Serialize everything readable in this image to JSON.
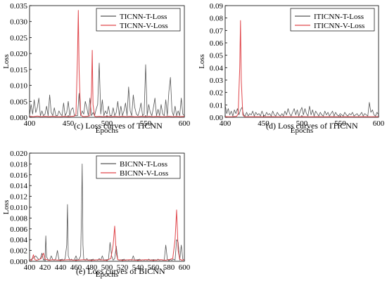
{
  "chart_data": [
    {
      "type": "line",
      "xlabel": "Epochs",
      "ylabel": "Loss",
      "xlim": [
        400,
        600
      ],
      "ylim": [
        0,
        0.035
      ],
      "xticks": [
        400,
        450,
        500,
        550,
        600
      ],
      "yticks": [
        0.0,
        0.005,
        0.01,
        0.015,
        0.02,
        0.025,
        0.03,
        0.035
      ],
      "ytick_labels": [
        "0.000",
        "0.005",
        "0.010",
        "0.015",
        "0.020",
        "0.025",
        "0.030",
        "0.035"
      ],
      "caption": "(c) Loss curves of TICNN",
      "legend_position": "top-right",
      "grid": false,
      "series": [
        {
          "name": "TICNN-T-Loss",
          "color": "#555555",
          "x": [
            400,
            402,
            404,
            406,
            408,
            410,
            412,
            414,
            416,
            418,
            420,
            422,
            424,
            426,
            428,
            430,
            432,
            434,
            436,
            438,
            440,
            442,
            444,
            446,
            448,
            450,
            452,
            454,
            456,
            458,
            460,
            462,
            464,
            466,
            468,
            470,
            472,
            474,
            476,
            478,
            480,
            482,
            484,
            486,
            488,
            490,
            492,
            494,
            496,
            498,
            500,
            502,
            504,
            506,
            508,
            510,
            512,
            514,
            516,
            518,
            520,
            522,
            524,
            526,
            528,
            530,
            532,
            534,
            536,
            538,
            540,
            542,
            544,
            546,
            548,
            550,
            552,
            554,
            556,
            558,
            560,
            562,
            564,
            566,
            568,
            570,
            572,
            574,
            576,
            578,
            580,
            582,
            584,
            586,
            588,
            590,
            592,
            594,
            596,
            598,
            600
          ],
          "y": [
            0.0005,
            0.004,
            0.001,
            0.0055,
            0.0015,
            0.003,
            0.006,
            0.0005,
            0.002,
            0.0005,
            0.001,
            0.0035,
            0.0005,
            0.007,
            0.0015,
            0.0005,
            0.003,
            0.0005,
            0.0005,
            0.002,
            0.001,
            0.0005,
            0.0045,
            0.0005,
            0.0015,
            0.005,
            0.0005,
            0.0025,
            0.003,
            0.0005,
            0.0005,
            0.0005,
            0.0075,
            0.0005,
            0.002,
            0.001,
            0.005,
            0.003,
            0.0005,
            0.006,
            0.0005,
            0.0015,
            0.0005,
            0.0025,
            0.004,
            0.017,
            0.001,
            0.0055,
            0.0005,
            0.002,
            0.001,
            0.0035,
            0.0005,
            0.0005,
            0.003,
            0.0005,
            0.0015,
            0.005,
            0.0005,
            0.0035,
            0.0005,
            0.002,
            0.0045,
            0.0005,
            0.0095,
            0.002,
            0.0005,
            0.007,
            0.003,
            0.001,
            0.0005,
            0.002,
            0.0045,
            0.0005,
            0.001,
            0.0165,
            0.0005,
            0.004,
            0.0015,
            0.0005,
            0.003,
            0.006,
            0.0005,
            0.0025,
            0.0005,
            0.004,
            0.001,
            0.0005,
            0.0055,
            0.0005,
            0.008,
            0.0125,
            0.002,
            0.0005,
            0.0035,
            0.0005,
            0.002,
            0.0005,
            0.006,
            0.001,
            0.0005
          ]
        },
        {
          "name": "TICNN-V-Loss",
          "color": "#e0474c",
          "x": [
            400,
            405,
            410,
            415,
            420,
            425,
            430,
            435,
            440,
            445,
            450,
            455,
            458,
            460,
            462,
            463,
            464,
            466,
            468,
            470,
            475,
            478,
            480,
            481,
            482,
            484,
            486,
            490,
            495,
            500,
            505,
            510,
            515,
            520,
            525,
            530,
            535,
            540,
            545,
            550,
            555,
            560,
            565,
            570,
            575,
            580,
            585,
            590,
            595,
            600
          ],
          "y": [
            0.0003,
            0.0002,
            0.0004,
            0.0002,
            0.0003,
            0.0002,
            0.0003,
            0.0002,
            0.0002,
            0.0003,
            0.0002,
            0.0003,
            0.0004,
            0.001,
            0.02,
            0.0335,
            0.015,
            0.001,
            0.0003,
            0.0002,
            0.0003,
            0.0005,
            0.008,
            0.021,
            0.004,
            0.0004,
            0.0002,
            0.0003,
            0.0002,
            0.0003,
            0.0002,
            0.0003,
            0.0002,
            0.0003,
            0.0002,
            0.0003,
            0.0002,
            0.0002,
            0.0003,
            0.0002,
            0.0003,
            0.0002,
            0.0003,
            0.0002,
            0.0002,
            0.0003,
            0.0002,
            0.0003,
            0.0002,
            0.0003
          ]
        }
      ]
    },
    {
      "type": "line",
      "xlabel": "Epochs",
      "ylabel": "Loss",
      "xlim": [
        400,
        600
      ],
      "ylim": [
        0,
        0.09
      ],
      "xticks": [
        400,
        450,
        500,
        550,
        600
      ],
      "yticks": [
        0.0,
        0.01,
        0.02,
        0.03,
        0.04,
        0.05,
        0.06,
        0.07,
        0.08,
        0.09
      ],
      "ytick_labels": [
        "0.00",
        "0.01",
        "0.02",
        "0.03",
        "0.04",
        "0.05",
        "0.06",
        "0.07",
        "0.08",
        "0.09"
      ],
      "caption": "(d) Loss curves of ITICNN",
      "legend_position": "top-right",
      "grid": false,
      "series": [
        {
          "name": "ITICNN-T-Loss",
          "color": "#555555",
          "x": [
            400,
            402,
            404,
            406,
            408,
            410,
            412,
            414,
            416,
            418,
            420,
            422,
            424,
            426,
            428,
            430,
            432,
            434,
            436,
            438,
            440,
            442,
            444,
            446,
            448,
            450,
            452,
            454,
            456,
            458,
            460,
            462,
            464,
            466,
            468,
            470,
            472,
            474,
            476,
            478,
            480,
            482,
            484,
            486,
            488,
            490,
            492,
            494,
            496,
            498,
            500,
            502,
            504,
            506,
            508,
            510,
            512,
            514,
            516,
            518,
            520,
            522,
            524,
            526,
            528,
            530,
            532,
            534,
            536,
            538,
            540,
            542,
            544,
            546,
            548,
            550,
            552,
            554,
            556,
            558,
            560,
            562,
            564,
            566,
            568,
            570,
            572,
            574,
            576,
            578,
            580,
            582,
            584,
            586,
            588,
            590,
            592,
            594,
            596,
            598,
            600
          ],
          "y": [
            0.01,
            0.003,
            0.007,
            0.002,
            0.005,
            0.001,
            0.006,
            0.003,
            0.007,
            0.002,
            0.006,
            0.008,
            0.002,
            0.001,
            0.004,
            0.001,
            0.003,
            0.002,
            0.005,
            0.001,
            0.004,
            0.002,
            0.003,
            0.001,
            0.005,
            0.002,
            0.001,
            0.004,
            0.002,
            0.003,
            0.001,
            0.005,
            0.002,
            0.001,
            0.004,
            0.002,
            0.001,
            0.003,
            0.001,
            0.005,
            0.002,
            0.007,
            0.003,
            0.001,
            0.004,
            0.007,
            0.002,
            0.006,
            0.001,
            0.005,
            0.008,
            0.002,
            0.007,
            0.003,
            0.001,
            0.009,
            0.002,
            0.006,
            0.001,
            0.005,
            0.003,
            0.001,
            0.004,
            0.002,
            0.001,
            0.005,
            0.002,
            0.004,
            0.001,
            0.003,
            0.005,
            0.001,
            0.004,
            0.002,
            0.001,
            0.003,
            0.002,
            0.001,
            0.004,
            0.002,
            0.001,
            0.003,
            0.002,
            0.004,
            0.001,
            0.002,
            0.003,
            0.001,
            0.002,
            0.004,
            0.001,
            0.003,
            0.002,
            0.001,
            0.012,
            0.004,
            0.006,
            0.002,
            0.001,
            0.004,
            0.002
          ]
        },
        {
          "name": "ITICNN-V-Loss",
          "color": "#e0474c",
          "x": [
            400,
            405,
            410,
            415,
            417,
            419,
            420,
            421,
            423,
            425,
            430,
            440,
            450,
            460,
            470,
            480,
            490,
            500,
            510,
            520,
            530,
            540,
            550,
            560,
            570,
            580,
            590,
            600
          ],
          "y": [
            0.0005,
            0.0004,
            0.0005,
            0.0008,
            0.003,
            0.04,
            0.078,
            0.03,
            0.002,
            0.0005,
            0.0004,
            0.0005,
            0.0004,
            0.0005,
            0.0004,
            0.0005,
            0.0004,
            0.0005,
            0.0004,
            0.0005,
            0.0004,
            0.0005,
            0.0004,
            0.0005,
            0.0004,
            0.0005,
            0.0004,
            0.0005
          ]
        }
      ]
    },
    {
      "type": "line",
      "xlabel": "Epochs",
      "ylabel": "Loss",
      "xlim": [
        400,
        600
      ],
      "ylim": [
        0,
        0.02
      ],
      "xticks": [
        400,
        420,
        440,
        460,
        480,
        500,
        520,
        540,
        560,
        580,
        600
      ],
      "yticks": [
        0.0,
        0.002,
        0.004,
        0.006,
        0.008,
        0.01,
        0.012,
        0.014,
        0.016,
        0.018,
        0.02
      ],
      "ytick_labels": [
        "0.000",
        "0.002",
        "0.004",
        "0.006",
        "0.008",
        "0.010",
        "0.012",
        "0.014",
        "0.016",
        "0.018",
        "0.020"
      ],
      "caption": "(e) Loss curves of BICNN",
      "legend_position": "top-right",
      "grid": false,
      "series": [
        {
          "name": "BICNN-T-Loss",
          "color": "#555555",
          "x": [
            400,
            404,
            408,
            412,
            414,
            416,
            418,
            420,
            421,
            422,
            424,
            426,
            428,
            430,
            432,
            434,
            436,
            438,
            440,
            442,
            444,
            446,
            448,
            449,
            450,
            452,
            454,
            456,
            458,
            460,
            462,
            464,
            466,
            467,
            468,
            469,
            470,
            472,
            474,
            476,
            478,
            480,
            482,
            484,
            486,
            488,
            490,
            492,
            494,
            496,
            498,
            500,
            502,
            504,
            506,
            508,
            510,
            512,
            514,
            516,
            518,
            520,
            522,
            524,
            526,
            528,
            530,
            532,
            534,
            536,
            538,
            540,
            542,
            544,
            546,
            548,
            550,
            552,
            554,
            556,
            558,
            560,
            562,
            564,
            566,
            568,
            570,
            572,
            574,
            576,
            578,
            580,
            582,
            584,
            586,
            588,
            590,
            592,
            594,
            596,
            598,
            600
          ],
          "y": [
            0.0002,
            0.0005,
            0.001,
            0.0003,
            0.0005,
            0.0015,
            0.0002,
            0.0005,
            0.0047,
            0.0008,
            0.0003,
            0.0002,
            0.001,
            0.0003,
            0.0002,
            0.0005,
            0.002,
            0.0003,
            0.0002,
            0.0004,
            0.0002,
            0.0005,
            0.003,
            0.0105,
            0.001,
            0.0002,
            0.0004,
            0.0002,
            0.0003,
            0.001,
            0.0002,
            0.0004,
            0.001,
            0.008,
            0.018,
            0.003,
            0.0004,
            0.0002,
            0.0005,
            0.0002,
            0.0003,
            0.0002,
            0.0004,
            0.0002,
            0.0003,
            0.0002,
            0.0005,
            0.0002,
            0.001,
            0.0002,
            0.0003,
            0.0002,
            0.0004,
            0.0035,
            0.001,
            0.0002,
            0.0005,
            0.0028,
            0.0003,
            0.0002,
            0.0003,
            0.0002,
            0.0004,
            0.0002,
            0.0003,
            0.0002,
            0.0003,
            0.0002,
            0.001,
            0.0002,
            0.0003,
            0.0002,
            0.0004,
            0.0002,
            0.0003,
            0.0002,
            0.0003,
            0.0002,
            0.0004,
            0.0002,
            0.0003,
            0.0002,
            0.0003,
            0.0002,
            0.0004,
            0.0002,
            0.0003,
            0.0002,
            0.0002,
            0.003,
            0.0004,
            0.0002,
            0.0003,
            0.0002,
            0.0004,
            0.0002,
            0.004,
            0.0035,
            0.0002,
            0.003,
            0.0004,
            0.0002
          ]
        },
        {
          "name": "BICNN-V-Loss",
          "color": "#e0474c",
          "x": [
            400,
            403,
            405,
            407,
            409,
            412,
            415,
            418,
            420,
            425,
            430,
            440,
            450,
            460,
            470,
            480,
            490,
            500,
            505,
            508,
            510,
            512,
            514,
            520,
            530,
            540,
            550,
            560,
            570,
            575,
            580,
            585,
            588,
            590,
            592,
            594,
            597,
            600
          ],
          "y": [
            0.0003,
            0.0002,
            0.0012,
            0.0003,
            0.0002,
            0.0003,
            0.0005,
            0.0015,
            0.0004,
            0.0002,
            0.0003,
            0.0002,
            0.0003,
            0.0002,
            0.0003,
            0.0002,
            0.0003,
            0.0002,
            0.0005,
            0.003,
            0.0065,
            0.0015,
            0.0003,
            0.0002,
            0.0003,
            0.0002,
            0.0003,
            0.0002,
            0.0003,
            0.0002,
            0.0003,
            0.0005,
            0.004,
            0.0095,
            0.002,
            0.0004,
            0.0002,
            0.0003
          ]
        }
      ]
    }
  ]
}
